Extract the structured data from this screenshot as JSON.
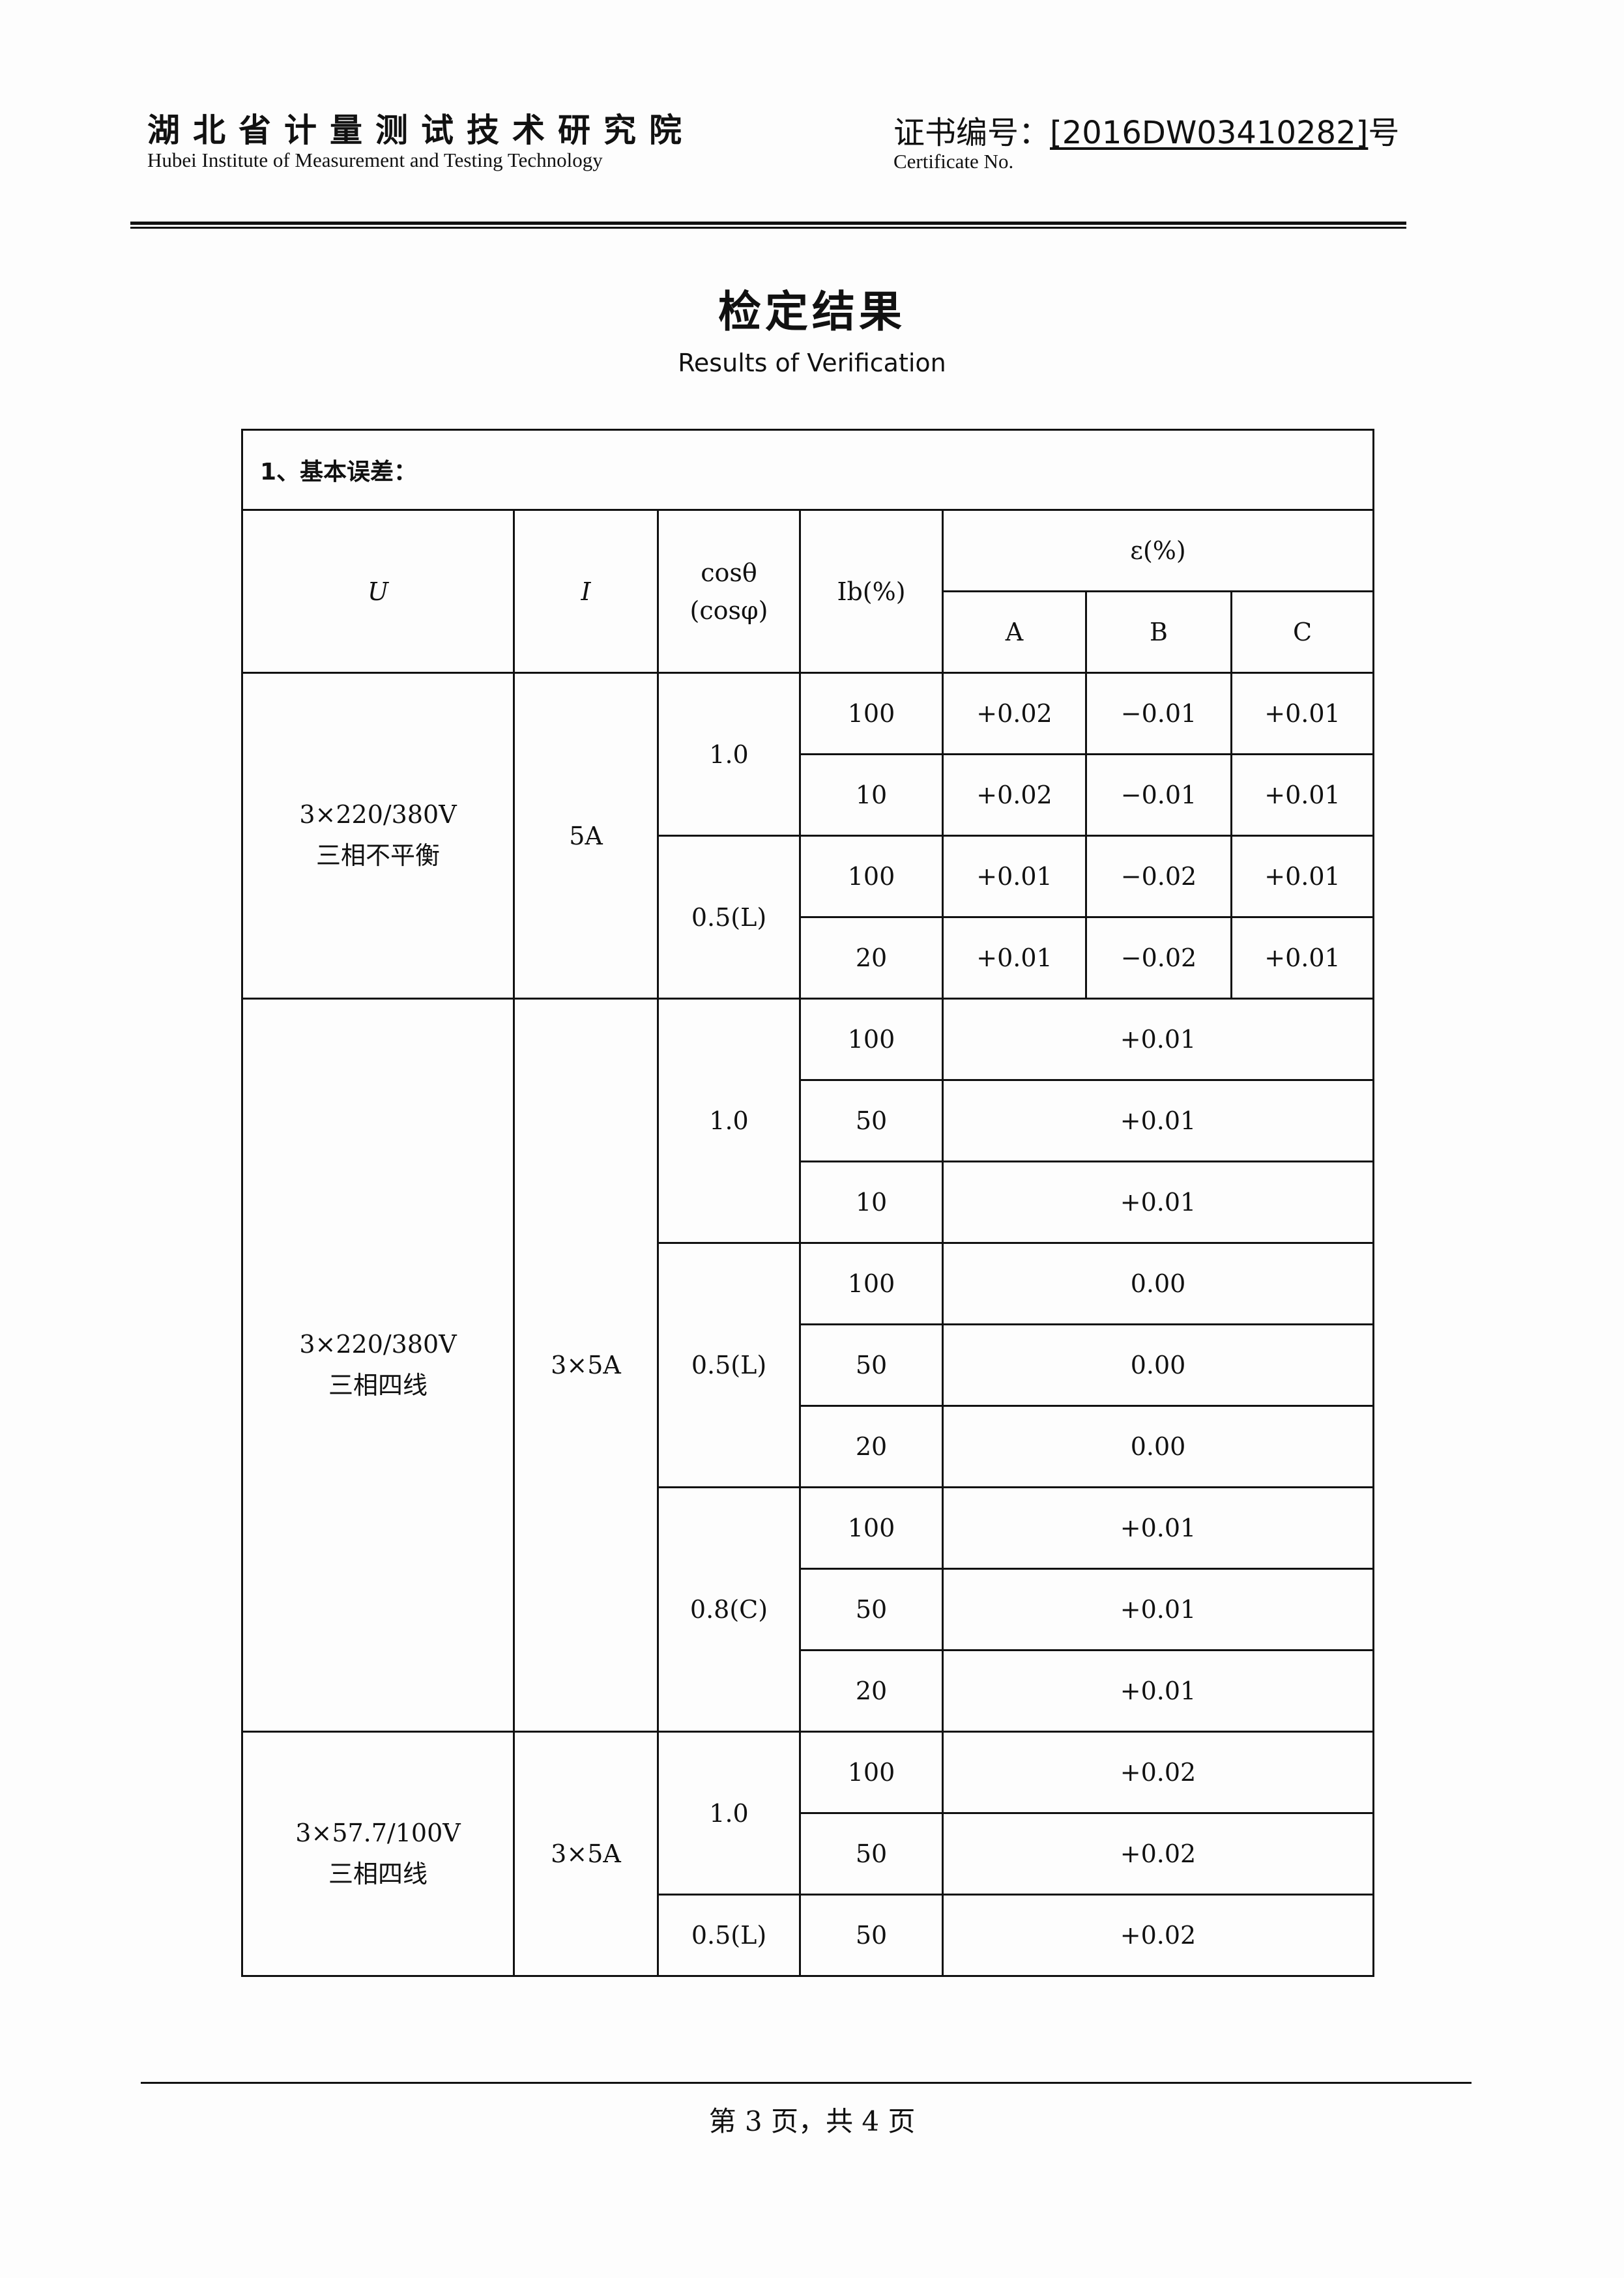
{
  "header": {
    "org_name": "湖北省计量测试技术研究院",
    "org_name_en": "Hubei Institute of Measurement and Testing Technology",
    "cert_label": "证书编号：",
    "cert_number": "[2016DW03410282]",
    "cert_suffix": "号",
    "cert_label_en": "Certificate No."
  },
  "title": "检定结果",
  "subtitle": "Results of Verification",
  "section_title": "1、基本误差：",
  "table": {
    "headers": {
      "U": "U",
      "I": "I",
      "pf": "cosθ",
      "pf2": "(cosφ)",
      "ib": "Ib(%)",
      "err": "ε(%)",
      "A": "A",
      "B": "B",
      "C": "C"
    },
    "groups": [
      {
        "voltage": "3×220/380V",
        "mode": "三相不平衡",
        "current": "5A",
        "per_phase": true,
        "pf_blocks": [
          {
            "pf": "1.0",
            "rows": [
              {
                "ib": "100",
                "A": "+0.02",
                "B": "−0.01",
                "C": "+0.01"
              },
              {
                "ib": "10",
                "A": "+0.02",
                "B": "−0.01",
                "C": "+0.01"
              }
            ]
          },
          {
            "pf": "0.5(L)",
            "rows": [
              {
                "ib": "100",
                "A": "+0.01",
                "B": "−0.02",
                "C": "+0.01"
              },
              {
                "ib": "20",
                "A": "+0.01",
                "B": "−0.02",
                "C": "+0.01"
              }
            ]
          }
        ]
      },
      {
        "voltage": "3×220/380V",
        "mode": "三相四线",
        "current": "3×5A",
        "per_phase": false,
        "pf_blocks": [
          {
            "pf": "1.0",
            "rows": [
              {
                "ib": "100",
                "err": "+0.01"
              },
              {
                "ib": "50",
                "err": "+0.01"
              },
              {
                "ib": "10",
                "err": "+0.01"
              }
            ]
          },
          {
            "pf": "0.5(L)",
            "rows": [
              {
                "ib": "100",
                "err": "0.00"
              },
              {
                "ib": "50",
                "err": "0.00"
              },
              {
                "ib": "20",
                "err": "0.00"
              }
            ]
          },
          {
            "pf": "0.8(C)",
            "rows": [
              {
                "ib": "100",
                "err": "+0.01"
              },
              {
                "ib": "50",
                "err": "+0.01"
              },
              {
                "ib": "20",
                "err": "+0.01"
              }
            ]
          }
        ]
      },
      {
        "voltage": "3×57.7/100V",
        "mode": "三相四线",
        "current": "3×5A",
        "per_phase": false,
        "pf_blocks": [
          {
            "pf": "1.0",
            "rows": [
              {
                "ib": "100",
                "err": "+0.02"
              },
              {
                "ib": "50",
                "err": "+0.02"
              }
            ]
          },
          {
            "pf": "0.5(L)",
            "rows": [
              {
                "ib": "50",
                "err": "+0.02"
              }
            ]
          }
        ]
      }
    ]
  },
  "footer": "第 3 页，共 4 页"
}
